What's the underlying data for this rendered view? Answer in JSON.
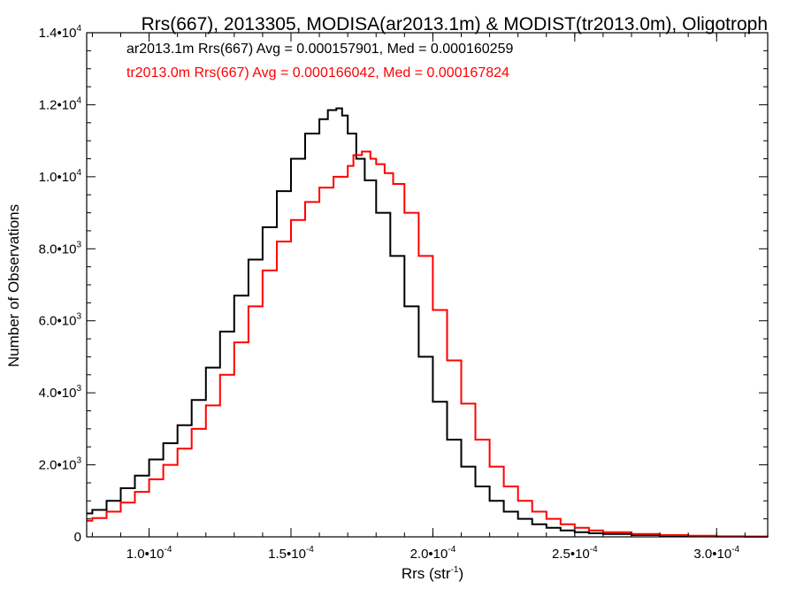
{
  "chart_data": {
    "type": "line",
    "title": "Rrs(667), 2013305, MODISA(ar2013.1m) & MODIST(tr2013.0m), Oligotroph",
    "xlabel": "Rrs (str",
    "xlabel_sup": "-1",
    "xlabel_close": ")",
    "ylabel": "Number of Observations",
    "xlim": [
      7.8e-05,
      0.000318
    ],
    "ylim": [
      0,
      14000
    ],
    "grid": false,
    "step": true,
    "x_ticks": [
      {
        "value": 0.0001,
        "mant": "1.0•10",
        "exp": "-4"
      },
      {
        "value": 0.00015,
        "mant": "1.5•10",
        "exp": "-4"
      },
      {
        "value": 0.0002,
        "mant": "2.0•10",
        "exp": "-4"
      },
      {
        "value": 0.00025,
        "mant": "2.5•10",
        "exp": "-4"
      },
      {
        "value": 0.0003,
        "mant": "3.0•10",
        "exp": "-4"
      }
    ],
    "y_ticks": [
      {
        "value": 0,
        "mant": "0",
        "exp": ""
      },
      {
        "value": 2000,
        "mant": "2.0•10",
        "exp": "3"
      },
      {
        "value": 4000,
        "mant": "4.0•10",
        "exp": "3"
      },
      {
        "value": 6000,
        "mant": "6.0•10",
        "exp": "3"
      },
      {
        "value": 8000,
        "mant": "8.0•10",
        "exp": "3"
      },
      {
        "value": 10000,
        "mant": "1.0•10",
        "exp": "4"
      },
      {
        "value": 12000,
        "mant": "1.2•10",
        "exp": "4"
      },
      {
        "value": 14000,
        "mant": "1.4•10",
        "exp": "4"
      }
    ],
    "annotations": [
      {
        "text": "ar2013.1m Rrs(667) Avg = 0.000157901, Med = 0.000160259",
        "color": "#000000"
      },
      {
        "text": "tr2013.0m Rrs(667) Avg = 0.000166042, Med = 0.000167824",
        "color": "#ff0000"
      }
    ],
    "series": [
      {
        "color": "#000000",
        "x": [
          7.8e-05,
          8e-05,
          8.5e-05,
          9e-05,
          9.5e-05,
          0.0001,
          0.000105,
          0.00011,
          0.000115,
          0.00012,
          0.000125,
          0.00013,
          0.000135,
          0.00014,
          0.000145,
          0.00015,
          0.000155,
          0.00016,
          0.000163,
          0.000166,
          0.000168,
          0.00017,
          0.000173,
          0.000176,
          0.00018,
          0.000185,
          0.00019,
          0.000195,
          0.0002,
          0.000205,
          0.00021,
          0.000215,
          0.00022,
          0.000225,
          0.00023,
          0.000235,
          0.00024,
          0.000245,
          0.00025,
          0.000255,
          0.00026,
          0.00027,
          0.00028,
          0.00029,
          0.0003,
          0.00031,
          0.000318
        ],
        "y": [
          650,
          750,
          1000,
          1350,
          1700,
          2150,
          2600,
          3100,
          3800,
          4700,
          5700,
          6700,
          7700,
          8600,
          9600,
          10500,
          11200,
          11600,
          11850,
          11900,
          11700,
          11200,
          10500,
          9900,
          9000,
          7800,
          6400,
          5000,
          3750,
          2700,
          1950,
          1400,
          1000,
          700,
          500,
          350,
          250,
          180,
          130,
          100,
          80,
          50,
          30,
          20,
          10,
          5,
          0
        ]
      },
      {
        "color": "#ff0000",
        "x": [
          7.8e-05,
          8e-05,
          8.5e-05,
          9e-05,
          9.5e-05,
          0.0001,
          0.000105,
          0.00011,
          0.000115,
          0.00012,
          0.000125,
          0.00013,
          0.000135,
          0.00014,
          0.000145,
          0.00015,
          0.000155,
          0.00016,
          0.000165,
          0.00017,
          0.000172,
          0.000175,
          0.000178,
          0.00018,
          0.000183,
          0.000186,
          0.00019,
          0.000195,
          0.0002,
          0.000205,
          0.00021,
          0.000215,
          0.00022,
          0.000225,
          0.00023,
          0.000235,
          0.00024,
          0.000245,
          0.00025,
          0.000255,
          0.00026,
          0.00027,
          0.00028,
          0.00029,
          0.0003,
          0.00031,
          0.000318
        ],
        "y": [
          450,
          520,
          700,
          950,
          1250,
          1600,
          2000,
          2450,
          3000,
          3650,
          4500,
          5400,
          6400,
          7400,
          8200,
          8800,
          9300,
          9700,
          10000,
          10300,
          10600,
          10700,
          10500,
          10350,
          10100,
          9800,
          9000,
          7800,
          6300,
          4900,
          3700,
          2700,
          1950,
          1400,
          1000,
          700,
          500,
          350,
          250,
          180,
          130,
          80,
          50,
          30,
          15,
          8,
          0
        ]
      }
    ]
  }
}
